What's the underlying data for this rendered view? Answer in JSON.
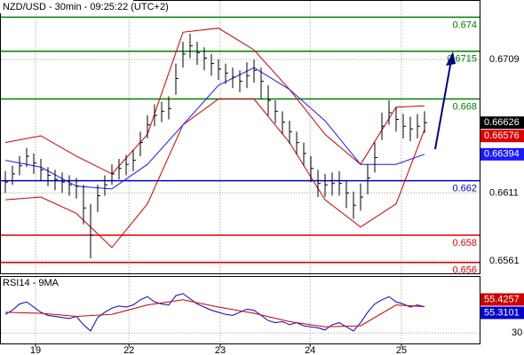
{
  "chart_data": [
    {
      "type": "ohlc",
      "title": "NZD/USD - 30min - 09:25:22 (UTC+2)",
      "ylim": [
        0.6552,
        0.6752
      ],
      "yticks": [
        0.6709,
        0.6611,
        0.6561
      ],
      "grid": true,
      "xticks": [
        {
          "value": 4.25,
          "label": "19"
        },
        {
          "value": 17.4,
          "label": "22"
        },
        {
          "value": 30.25,
          "label": "23"
        },
        {
          "value": 42.9,
          "label": "24"
        },
        {
          "value": 55.75,
          "label": "25"
        }
      ],
      "color": "#000000",
      "close": [
        0.6619,
        0.6625,
        0.6631,
        0.6638,
        0.6633,
        0.6628,
        0.6624,
        0.6621,
        0.6619,
        0.6617,
        0.6616,
        0.66,
        0.658,
        0.6609,
        0.6617,
        0.6625,
        0.6629,
        0.6632,
        0.6635,
        0.6648,
        0.6661,
        0.6668,
        0.6671,
        0.6673,
        0.6695,
        0.6713,
        0.6719,
        0.6714,
        0.671,
        0.6706,
        0.6702,
        0.6699,
        0.6696,
        0.6693,
        0.6697,
        0.6701,
        0.6693,
        0.6679,
        0.6671,
        0.6663,
        0.6656,
        0.6648,
        0.664,
        0.6629,
        0.6618,
        0.6617,
        0.6618,
        0.6618,
        0.6611,
        0.6602,
        0.6608,
        0.6622,
        0.6637,
        0.666,
        0.667,
        0.6665,
        0.666,
        0.6658,
        0.666,
        0.66626
      ],
      "high": [
        0.6627,
        0.6631,
        0.6638,
        0.6644,
        0.664,
        0.6636,
        0.663,
        0.6628,
        0.6626,
        0.6624,
        0.6622,
        0.6617,
        0.6603,
        0.6617,
        0.6624,
        0.6632,
        0.6636,
        0.6639,
        0.6643,
        0.6656,
        0.6668,
        0.6676,
        0.6678,
        0.6682,
        0.6706,
        0.6722,
        0.6728,
        0.6722,
        0.6718,
        0.6713,
        0.6709,
        0.6706,
        0.6703,
        0.6701,
        0.6707,
        0.6709,
        0.6703,
        0.669,
        0.6679,
        0.6671,
        0.6664,
        0.6656,
        0.6648,
        0.6638,
        0.6628,
        0.6625,
        0.6626,
        0.6627,
        0.662,
        0.6612,
        0.6618,
        0.6632,
        0.6648,
        0.667,
        0.6679,
        0.6674,
        0.6669,
        0.6667,
        0.6669,
        0.6671
      ],
      "low": [
        0.6611,
        0.6617,
        0.6624,
        0.663,
        0.6625,
        0.662,
        0.6616,
        0.6613,
        0.6611,
        0.6609,
        0.6607,
        0.6588,
        0.6563,
        0.6597,
        0.6609,
        0.6617,
        0.6621,
        0.6624,
        0.6627,
        0.6638,
        0.6651,
        0.666,
        0.6663,
        0.6665,
        0.6683,
        0.6703,
        0.671,
        0.6705,
        0.6701,
        0.6697,
        0.6694,
        0.6691,
        0.6688,
        0.6685,
        0.6688,
        0.6692,
        0.668,
        0.6668,
        0.6662,
        0.6654,
        0.6647,
        0.6639,
        0.6631,
        0.6619,
        0.6608,
        0.6608,
        0.6609,
        0.6609,
        0.66,
        0.6592,
        0.6598,
        0.661,
        0.6626,
        0.665,
        0.6661,
        0.6656,
        0.6651,
        0.6649,
        0.6651,
        0.6655
      ],
      "overlays": [
        {
          "color": "#cc0000",
          "x": [
            0,
            5,
            10,
            15,
            20,
            25,
            30,
            35,
            40,
            45,
            50,
            55,
            59
          ],
          "values": [
            0.6648,
            0.6653,
            0.6638,
            0.6625,
            0.6654,
            0.6729,
            0.6732,
            0.6716,
            0.6687,
            0.6654,
            0.6632,
            0.6674,
            0.6675
          ]
        },
        {
          "color": "#cc0000",
          "x": [
            0,
            5,
            10,
            15,
            20,
            25,
            30,
            35,
            40,
            45,
            50,
            55,
            59
          ],
          "values": [
            0.6606,
            0.6608,
            0.6596,
            0.6571,
            0.6603,
            0.6661,
            0.668,
            0.668,
            0.6648,
            0.6606,
            0.6586,
            0.6603,
            0.66576
          ]
        },
        {
          "color": "#1a1aff",
          "x": [
            0,
            5,
            10,
            15,
            20,
            25,
            30,
            35,
            40,
            45,
            50,
            55,
            59
          ],
          "values": [
            0.6635,
            0.663,
            0.6616,
            0.6614,
            0.6632,
            0.6661,
            0.669,
            0.6703,
            0.6687,
            0.6664,
            0.6632,
            0.6632,
            0.66394
          ]
        }
      ],
      "levels": [
        {
          "value": 0.674,
          "color": "#008000"
        },
        {
          "value": 0.6715,
          "color": "#008000"
        },
        {
          "value": 0.668,
          "color": "#008000"
        },
        {
          "value": 0.662,
          "color": "#0000cc"
        },
        {
          "value": 0.658,
          "color": "#dd0000"
        },
        {
          "value": 0.656,
          "color": "#dd0000"
        }
      ]
    },
    {
      "type": "line",
      "title": "RSI14 - 9MA",
      "ylim": [
        20,
        84
      ],
      "yticks": [
        30
      ],
      "series": [
        {
          "color": "#0000cc",
          "x": [
            0,
            1,
            2,
            3,
            4,
            5,
            6,
            7,
            8,
            9,
            10,
            11,
            12,
            13,
            14,
            15,
            16,
            17,
            18,
            19,
            20,
            21,
            22,
            23,
            24,
            25,
            26,
            27,
            28,
            29,
            30,
            31,
            32,
            33,
            34,
            35,
            36,
            37,
            38,
            39,
            40,
            41,
            42,
            43,
            44,
            45,
            46,
            47,
            48,
            49,
            50,
            51,
            52,
            53,
            54,
            55,
            56,
            57,
            58,
            59
          ],
          "values": [
            48,
            52,
            58,
            60,
            55,
            50,
            47,
            46,
            45,
            44,
            46,
            38,
            32,
            45,
            50,
            54,
            56,
            55,
            57,
            62,
            65,
            60,
            58,
            57,
            66,
            68,
            63,
            58,
            55,
            52,
            50,
            48,
            47,
            50,
            53,
            52,
            47,
            42,
            40,
            41,
            38,
            40,
            37,
            36,
            35,
            33,
            38,
            40,
            36,
            32,
            40,
            50,
            58,
            62,
            65,
            60,
            58,
            55,
            57,
            55.3101
          ]
        },
        {
          "color": "#cc0000",
          "x": [
            0,
            5,
            10,
            15,
            20,
            25,
            30,
            35,
            40,
            45,
            50,
            55,
            59
          ],
          "values": [
            50,
            49,
            46,
            48,
            57,
            62,
            55,
            49,
            41,
            36,
            37,
            57,
            55.4257
          ]
        }
      ]
    }
  ]
}
